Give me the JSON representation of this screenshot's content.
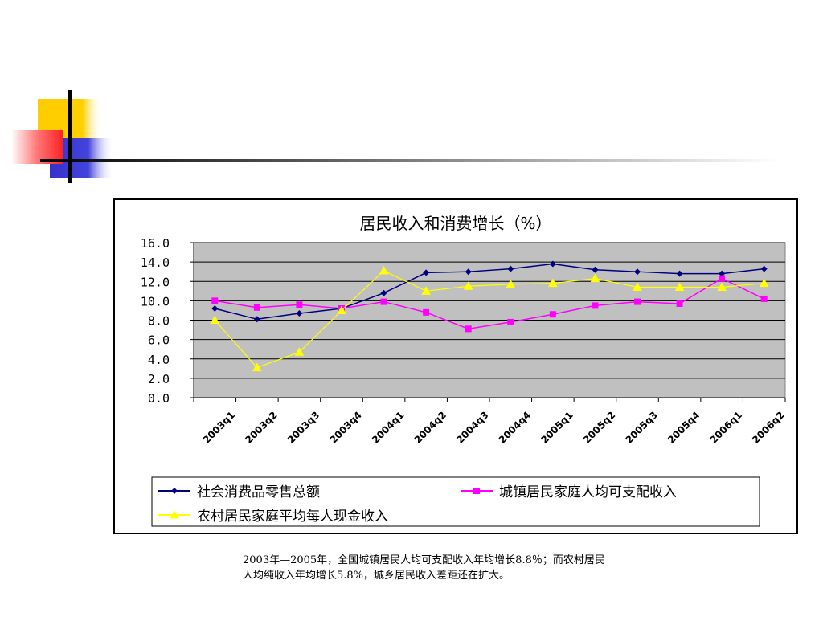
{
  "chart_data": {
    "type": "line",
    "title": "居民收入和消费增长（%）",
    "categories": [
      "2003q1",
      "2003q2",
      "2003q3",
      "2003q4",
      "2004q1",
      "2004q2",
      "2004q3",
      "2004q4",
      "2005q1",
      "2005q2",
      "2005q3",
      "2005q4",
      "2006q1",
      "2006q2"
    ],
    "ylim": [
      0,
      16
    ],
    "yticks": [
      "0.0",
      "2.0",
      "4.0",
      "6.0",
      "8.0",
      "10.0",
      "12.0",
      "14.0",
      "16.0"
    ],
    "grid": true,
    "plot_background": "#c0c0c0",
    "legend_position": "bottom",
    "series": [
      {
        "name": "社会消费品零售总额",
        "color": "#000080",
        "marker": "diamond",
        "values": [
          9.2,
          8.1,
          8.7,
          9.2,
          10.8,
          12.9,
          13.0,
          13.3,
          13.8,
          13.2,
          13.0,
          12.8,
          12.8,
          13.3
        ]
      },
      {
        "name": "城镇居民家庭人均可支配收入",
        "color": "#ff00ff",
        "marker": "square",
        "values": [
          10.0,
          9.3,
          9.6,
          9.2,
          9.9,
          8.8,
          7.1,
          7.8,
          8.6,
          9.5,
          9.9,
          9.7,
          12.3,
          10.2
        ]
      },
      {
        "name": "农村居民家庭平均每人现金收入",
        "color": "#ffff00",
        "marker": "triangle",
        "values": [
          8.0,
          3.1,
          4.7,
          9.0,
          13.1,
          11.0,
          11.5,
          11.7,
          11.8,
          12.3,
          11.4,
          11.4,
          11.4,
          11.8
        ]
      }
    ]
  },
  "caption": {
    "line1": "2003年—2005年，全国城镇居民人均可支配收入年均增长8.8％；而农村居民",
    "line2": "人均纯收入年均增长5.8%，城乡居民收入差距还在扩大。"
  }
}
